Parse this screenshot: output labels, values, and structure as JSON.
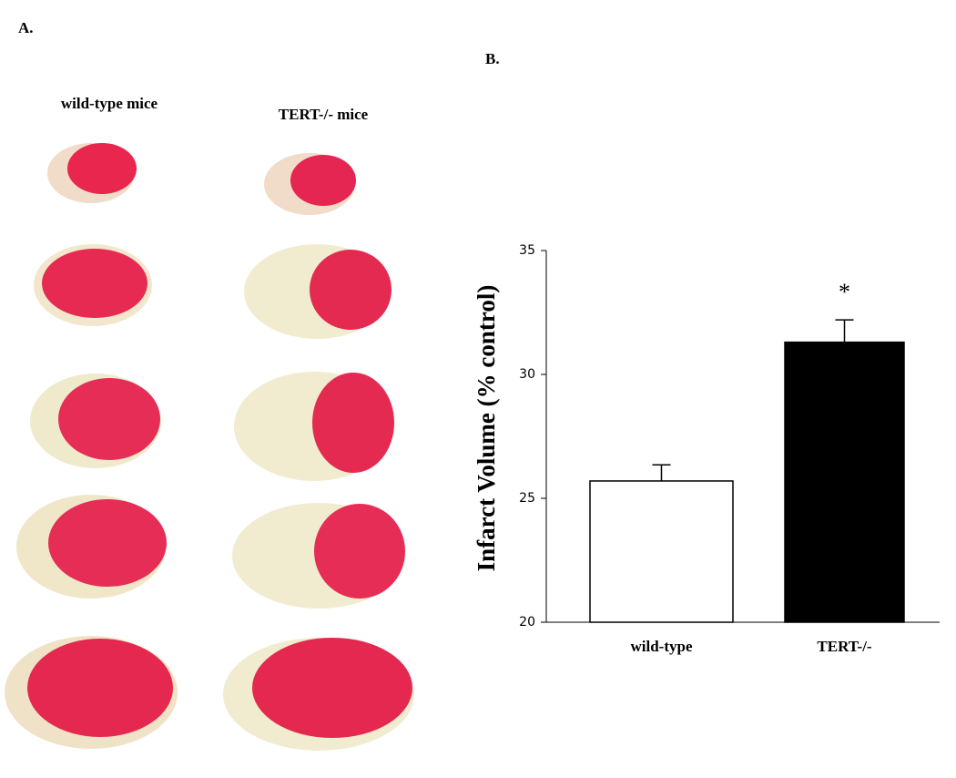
{
  "panel_labels": [
    "A.",
    "B."
  ],
  "panel_a": {
    "columns": [
      "wild-type mice",
      "TERT-/- mice"
    ]
  },
  "chart_data": {
    "type": "bar",
    "y_label": "Infarct Volume (% control)",
    "categories": [
      "wild-type",
      "TERT-/-"
    ],
    "values": [
      25.7,
      31.3
    ],
    "errors": [
      0.65,
      0.9
    ],
    "colors": [
      "#ffffff",
      "#000000"
    ],
    "annotation": "*",
    "ylim": [
      20,
      35
    ],
    "yticks": [
      20,
      25,
      30,
      35
    ]
  }
}
